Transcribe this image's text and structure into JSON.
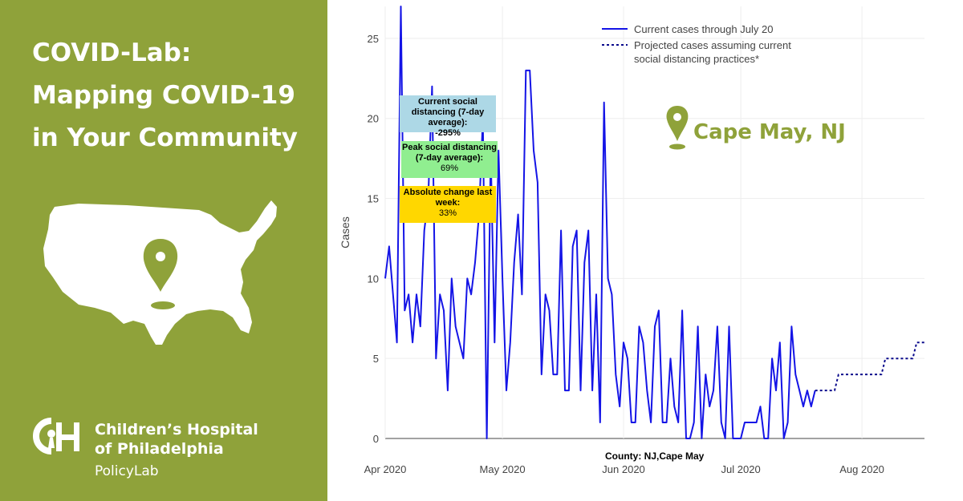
{
  "headline": {
    "line1": "COVID-Lab:",
    "line2": "Mapping COVID-19",
    "line3": "in Your Community"
  },
  "brand": {
    "name_line1": "Children’s Hospital",
    "name_line2": "of Philadelphia",
    "sub": "PolicyLab",
    "color": "#8fa23a"
  },
  "location": {
    "name": "Cape May, NJ"
  },
  "annotations": [
    {
      "title": "Current social distancing (7-day average):",
      "value": "-295%",
      "bg": "#add8e6"
    },
    {
      "title": "Peak social distancing (7-day average):",
      "value": "69%",
      "bg": "#90ee90"
    },
    {
      "title": "Absolute change last week:",
      "value": "33%",
      "bg": "#ffd700"
    }
  ],
  "footer": {
    "county": "County: NJ,Cape May"
  },
  "chart_data": {
    "type": "line",
    "ylabel": "Cases",
    "ylim": [
      0,
      27
    ],
    "yticks": [
      0,
      5,
      10,
      15,
      20,
      25
    ],
    "xlim": [
      "2020-04-01",
      "2020-08-17"
    ],
    "xticks": [
      {
        "date": "2020-04-01",
        "label": "Apr 2020"
      },
      {
        "date": "2020-05-01",
        "label": "May 2020"
      },
      {
        "date": "2020-06-01",
        "label": "Jun 2020"
      },
      {
        "date": "2020-07-01",
        "label": "Jul 2020"
      },
      {
        "date": "2020-08-01",
        "label": "Aug 2020"
      }
    ],
    "grid": true,
    "legend_position": "top-right",
    "series": [
      {
        "name": "Current cases through July 20",
        "style": "solid",
        "color": "#1414e6",
        "points": [
          [
            "2020-04-01",
            10
          ],
          [
            "2020-04-02",
            12
          ],
          [
            "2020-04-04",
            6
          ],
          [
            "2020-04-05",
            27
          ],
          [
            "2020-04-06",
            8
          ],
          [
            "2020-04-07",
            9
          ],
          [
            "2020-04-08",
            6
          ],
          [
            "2020-04-09",
            9
          ],
          [
            "2020-04-10",
            7
          ],
          [
            "2020-04-11",
            13
          ],
          [
            "2020-04-12",
            15
          ],
          [
            "2020-04-13",
            22
          ],
          [
            "2020-04-14",
            5
          ],
          [
            "2020-04-15",
            9
          ],
          [
            "2020-04-16",
            8
          ],
          [
            "2020-04-17",
            3
          ],
          [
            "2020-04-18",
            10
          ],
          [
            "2020-04-19",
            7
          ],
          [
            "2020-04-21",
            5
          ],
          [
            "2020-04-22",
            10
          ],
          [
            "2020-04-23",
            9
          ],
          [
            "2020-04-24",
            11
          ],
          [
            "2020-04-25",
            14
          ],
          [
            "2020-04-26",
            20
          ],
          [
            "2020-04-27",
            0
          ],
          [
            "2020-04-28",
            18
          ],
          [
            "2020-04-29",
            6
          ],
          [
            "2020-04-30",
            18
          ],
          [
            "2020-05-01",
            10
          ],
          [
            "2020-05-02",
            3
          ],
          [
            "2020-05-03",
            6
          ],
          [
            "2020-05-04",
            11
          ],
          [
            "2020-05-05",
            14
          ],
          [
            "2020-05-06",
            9
          ],
          [
            "2020-05-07",
            23
          ],
          [
            "2020-05-08",
            23
          ],
          [
            "2020-05-09",
            18
          ],
          [
            "2020-05-10",
            16
          ],
          [
            "2020-05-11",
            4
          ],
          [
            "2020-05-12",
            9
          ],
          [
            "2020-05-13",
            8
          ],
          [
            "2020-05-14",
            4
          ],
          [
            "2020-05-15",
            4
          ],
          [
            "2020-05-16",
            13
          ],
          [
            "2020-05-17",
            3
          ],
          [
            "2020-05-18",
            3
          ],
          [
            "2020-05-19",
            12
          ],
          [
            "2020-05-20",
            13
          ],
          [
            "2020-05-21",
            3
          ],
          [
            "2020-05-22",
            11
          ],
          [
            "2020-05-23",
            13
          ],
          [
            "2020-05-24",
            3
          ],
          [
            "2020-05-25",
            9
          ],
          [
            "2020-05-26",
            1
          ],
          [
            "2020-05-27",
            21
          ],
          [
            "2020-05-28",
            10
          ],
          [
            "2020-05-29",
            9
          ],
          [
            "2020-05-30",
            4
          ],
          [
            "2020-05-31",
            2
          ],
          [
            "2020-06-01",
            6
          ],
          [
            "2020-06-02",
            5
          ],
          [
            "2020-06-03",
            1
          ],
          [
            "2020-06-04",
            1
          ],
          [
            "2020-06-05",
            7
          ],
          [
            "2020-06-06",
            6
          ],
          [
            "2020-06-07",
            3
          ],
          [
            "2020-06-08",
            1
          ],
          [
            "2020-06-09",
            7
          ],
          [
            "2020-06-10",
            8
          ],
          [
            "2020-06-11",
            1
          ],
          [
            "2020-06-12",
            1
          ],
          [
            "2020-06-13",
            5
          ],
          [
            "2020-06-14",
            2
          ],
          [
            "2020-06-15",
            1
          ],
          [
            "2020-06-16",
            8
          ],
          [
            "2020-06-17",
            0
          ],
          [
            "2020-06-18",
            0
          ],
          [
            "2020-06-19",
            1
          ],
          [
            "2020-06-20",
            7
          ],
          [
            "2020-06-21",
            0
          ],
          [
            "2020-06-22",
            4
          ],
          [
            "2020-06-23",
            2
          ],
          [
            "2020-06-24",
            3
          ],
          [
            "2020-06-25",
            7
          ],
          [
            "2020-06-26",
            1
          ],
          [
            "2020-06-27",
            0
          ],
          [
            "2020-06-28",
            7
          ],
          [
            "2020-06-29",
            0
          ],
          [
            "2020-06-30",
            0
          ],
          [
            "2020-07-01",
            0
          ],
          [
            "2020-07-02",
            1
          ],
          [
            "2020-07-03",
            1
          ],
          [
            "2020-07-04",
            1
          ],
          [
            "2020-07-05",
            1
          ],
          [
            "2020-07-06",
            2
          ],
          [
            "2020-07-07",
            0
          ],
          [
            "2020-07-08",
            0
          ],
          [
            "2020-07-09",
            5
          ],
          [
            "2020-07-10",
            3
          ],
          [
            "2020-07-11",
            6
          ],
          [
            "2020-07-12",
            0
          ],
          [
            "2020-07-13",
            1
          ],
          [
            "2020-07-14",
            7
          ],
          [
            "2020-07-15",
            4
          ],
          [
            "2020-07-16",
            3
          ],
          [
            "2020-07-17",
            2
          ],
          [
            "2020-07-18",
            3
          ],
          [
            "2020-07-19",
            2
          ],
          [
            "2020-07-20",
            3
          ]
        ]
      },
      {
        "name": "Projected cases assuming current social distancing practices*",
        "style": "dotted",
        "color": "#0a0a8c",
        "points": [
          [
            "2020-07-20",
            3
          ],
          [
            "2020-07-25",
            3
          ],
          [
            "2020-07-26",
            4
          ],
          [
            "2020-08-06",
            4
          ],
          [
            "2020-08-07",
            5
          ],
          [
            "2020-08-14",
            5
          ],
          [
            "2020-08-15",
            6
          ],
          [
            "2020-08-17",
            6
          ]
        ]
      }
    ]
  }
}
